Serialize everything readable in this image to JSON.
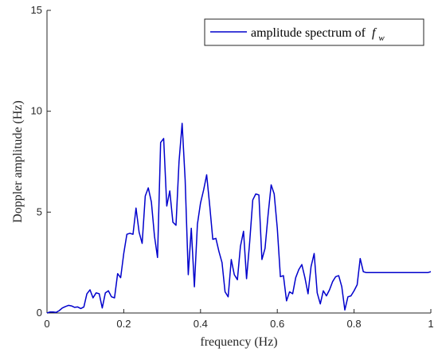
{
  "chart_data": {
    "type": "line",
    "xlabel": "frequency (Hz)",
    "ylabel": "Doppler amplitude (Hz)",
    "xlim": [
      0,
      1
    ],
    "ylim": [
      0,
      15
    ],
    "x_ticks": [
      "0",
      "0.2",
      "0.4",
      "0.6",
      "0.8",
      "1"
    ],
    "y_ticks": [
      "0",
      "5",
      "10",
      "15"
    ],
    "grid": false,
    "legend_position": "top-right",
    "series_color": "#0000cc",
    "series": [
      {
        "name": "amplitude spectrum of f_w",
        "x": [
          0,
          0.008,
          0.016,
          0.024,
          0.032,
          0.04,
          0.048,
          0.056,
          0.064,
          0.072,
          0.08,
          0.088,
          0.096,
          0.104,
          0.112,
          0.12,
          0.128,
          0.136,
          0.144,
          0.152,
          0.16,
          0.168,
          0.176,
          0.184,
          0.192,
          0.2,
          0.208,
          0.216,
          0.224,
          0.232,
          0.24,
          0.248,
          0.256,
          0.264,
          0.272,
          0.28,
          0.288,
          0.296,
          0.304,
          0.312,
          0.32,
          0.328,
          0.336,
          0.344,
          0.352,
          0.36,
          0.368,
          0.376,
          0.384,
          0.392,
          0.4,
          0.408,
          0.416,
          0.424,
          0.432,
          0.44,
          0.448,
          0.456,
          0.464,
          0.472,
          0.48,
          0.488,
          0.496,
          0.504,
          0.512,
          0.52,
          0.528,
          0.536,
          0.544,
          0.552,
          0.56,
          0.568,
          0.576,
          0.584,
          0.592,
          0.6,
          0.608,
          0.616,
          0.624,
          0.632,
          0.64,
          0.648,
          0.656,
          0.664,
          0.672,
          0.68,
          0.688,
          0.696,
          0.704,
          0.712,
          0.72,
          0.728,
          0.736,
          0.744,
          0.752,
          0.76,
          0.768,
          0.776,
          0.784,
          0.792,
          0.8,
          0.808,
          0.816,
          0.824,
          0.832,
          0.84,
          0.848,
          0.856,
          0.864,
          0.872,
          0.88,
          0.888,
          0.896,
          0.904,
          0.912,
          0.92,
          0.928,
          0.936,
          0.944,
          0.952,
          0.96,
          0.968,
          0.976,
          0.984,
          0.992,
          1.0
        ],
        "y": [
          0.0,
          0.05,
          0.05,
          0.03,
          0.12,
          0.25,
          0.32,
          0.38,
          0.35,
          0.28,
          0.3,
          0.22,
          0.3,
          0.95,
          1.15,
          0.75,
          1.0,
          0.95,
          0.25,
          1.0,
          1.1,
          0.8,
          0.75,
          1.95,
          1.75,
          2.95,
          3.9,
          3.95,
          3.9,
          5.2,
          4.0,
          3.45,
          5.8,
          6.2,
          5.5,
          3.8,
          2.75,
          8.45,
          8.65,
          5.3,
          6.05,
          4.5,
          4.35,
          7.5,
          9.4,
          6.6,
          1.9,
          4.2,
          1.3,
          4.4,
          5.45,
          6.1,
          6.85,
          5.3,
          3.65,
          3.7,
          3.05,
          2.5,
          1.05,
          0.8,
          2.65,
          1.9,
          1.65,
          3.3,
          4.05,
          1.7,
          3.5,
          5.6,
          5.9,
          5.85,
          2.65,
          3.2,
          4.85,
          6.35,
          5.9,
          4.2,
          1.8,
          1.85,
          0.6,
          1.05,
          0.95,
          1.75,
          2.15,
          2.4,
          1.75,
          0.95,
          2.3,
          2.95,
          1.0,
          0.45,
          1.1,
          0.85,
          1.15,
          1.55,
          1.8,
          1.85,
          1.3,
          0.15,
          0.8,
          0.85,
          1.1,
          1.4,
          2.7,
          2.05,
          2.0,
          2.0,
          2.0,
          2.0,
          2.0,
          2.0,
          2.0,
          2.0,
          2.0,
          2.0,
          2.0,
          2.0,
          2.0,
          2.0,
          2.0,
          2.0,
          2.0,
          2.0,
          2.0,
          2.0,
          2.0,
          2.05
        ]
      }
    ],
    "legend_label": "amplitude spectrum of",
    "legend_symbol": "f",
    "legend_subscript": "w"
  }
}
